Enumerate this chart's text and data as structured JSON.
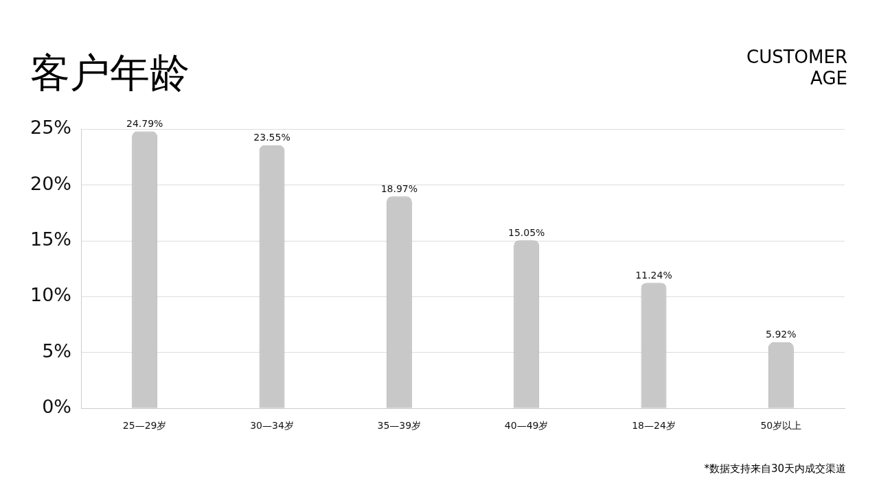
{
  "chart_data": {
    "type": "bar",
    "title": "客户年龄",
    "subtitle": "CUSTOMER AGE",
    "categories": [
      "25—29岁",
      "30—34岁",
      "35—39岁",
      "40—49岁",
      "18—24岁",
      "50岁以上"
    ],
    "values": [
      24.79,
      23.55,
      18.97,
      15.05,
      11.24,
      5.92
    ],
    "value_labels": [
      "24.79%",
      "23.55%",
      "18.97%",
      "15.05%",
      "11.24%",
      "5.92%"
    ],
    "color": "#c8c8c8",
    "ylim": [
      0,
      25
    ],
    "yticks": [
      {
        "value": 0,
        "label": "0%"
      },
      {
        "value": 5,
        "label": "5%"
      },
      {
        "value": 10,
        "label": "10%"
      },
      {
        "value": 15,
        "label": "15%"
      },
      {
        "value": 20,
        "label": "20%"
      },
      {
        "value": 25,
        "label": "25%"
      }
    ],
    "grid": "y",
    "annotations": [
      "*数据支持来自30天内成交渠道"
    ]
  }
}
